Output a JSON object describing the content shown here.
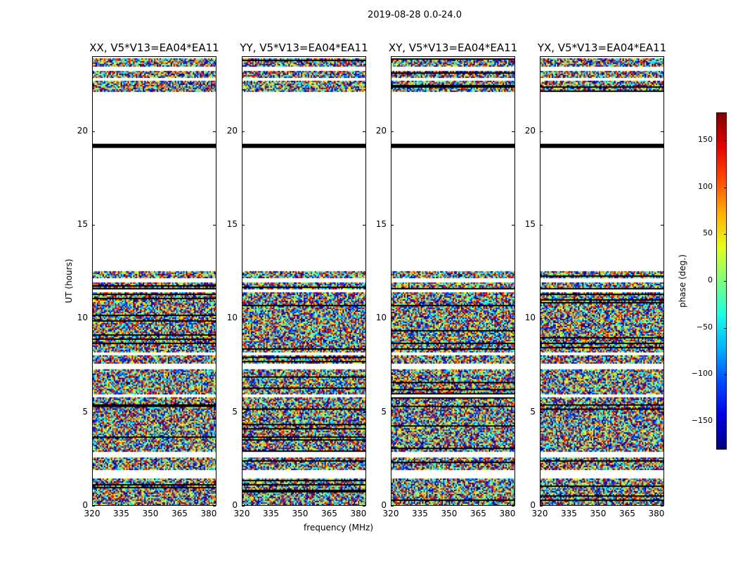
{
  "chart_data": {
    "type": "heatmap",
    "title": "2019-08-28 0.0-24.0",
    "xlabel": "frequency (MHz)",
    "ylabel": "UT (hours)",
    "xlim": [
      320,
      384
    ],
    "ylim": [
      0,
      24
    ],
    "xticks": [
      "320",
      "335",
      "350",
      "365",
      "380"
    ],
    "xtick_values": [
      320,
      335,
      350,
      365,
      380
    ],
    "yticks": [
      "0",
      "5",
      "10",
      "15",
      "20"
    ],
    "ytick_values": [
      0,
      5,
      10,
      15,
      20
    ],
    "panels": [
      {
        "title": "XX, V5*V13=EA04*EA11"
      },
      {
        "title": "YY, V5*V13=EA04*EA11"
      },
      {
        "title": "XY, V5*V13=EA04*EA11"
      },
      {
        "title": "YX, V5*V13=EA04*EA11"
      }
    ],
    "time_segments_hours": [
      {
        "start": 0.0,
        "end": 1.5,
        "kind": "data"
      },
      {
        "start": 1.5,
        "end": 1.9,
        "kind": "blank"
      },
      {
        "start": 1.9,
        "end": 2.6,
        "kind": "data"
      },
      {
        "start": 2.6,
        "end": 2.9,
        "kind": "blank"
      },
      {
        "start": 2.9,
        "end": 5.85,
        "kind": "data"
      },
      {
        "start": 5.85,
        "end": 5.95,
        "kind": "blank"
      },
      {
        "start": 5.95,
        "end": 7.3,
        "kind": "data"
      },
      {
        "start": 7.3,
        "end": 7.6,
        "kind": "blank"
      },
      {
        "start": 7.6,
        "end": 8.05,
        "kind": "data"
      },
      {
        "start": 8.05,
        "end": 8.2,
        "kind": "blank"
      },
      {
        "start": 8.2,
        "end": 11.4,
        "kind": "data"
      },
      {
        "start": 11.4,
        "end": 11.55,
        "kind": "blank"
      },
      {
        "start": 11.55,
        "end": 11.95,
        "kind": "data"
      },
      {
        "start": 11.95,
        "end": 12.2,
        "kind": "blank"
      },
      {
        "start": 12.2,
        "end": 12.6,
        "kind": "data"
      },
      {
        "start": 12.6,
        "end": 19.15,
        "kind": "blank"
      },
      {
        "start": 19.15,
        "end": 19.4,
        "kind": "flagged"
      },
      {
        "start": 19.4,
        "end": 22.2,
        "kind": "blank"
      },
      {
        "start": 22.2,
        "end": 22.8,
        "kind": "data"
      },
      {
        "start": 22.8,
        "end": 22.9,
        "kind": "blank"
      },
      {
        "start": 22.9,
        "end": 23.3,
        "kind": "data"
      },
      {
        "start": 23.3,
        "end": 23.5,
        "kind": "blank"
      },
      {
        "start": 23.5,
        "end": 24.0,
        "kind": "data"
      }
    ],
    "values_description_range": [
      -180,
      180
    ],
    "colorbar": {
      "label": "phase (deg.)",
      "range": [
        -180,
        180
      ],
      "ticks": [
        "−150",
        "−100",
        "−50",
        "0",
        "50",
        "100",
        "150"
      ],
      "tick_values": [
        -150,
        -100,
        -50,
        0,
        50,
        100,
        150
      ],
      "colormap": "jet"
    }
  }
}
